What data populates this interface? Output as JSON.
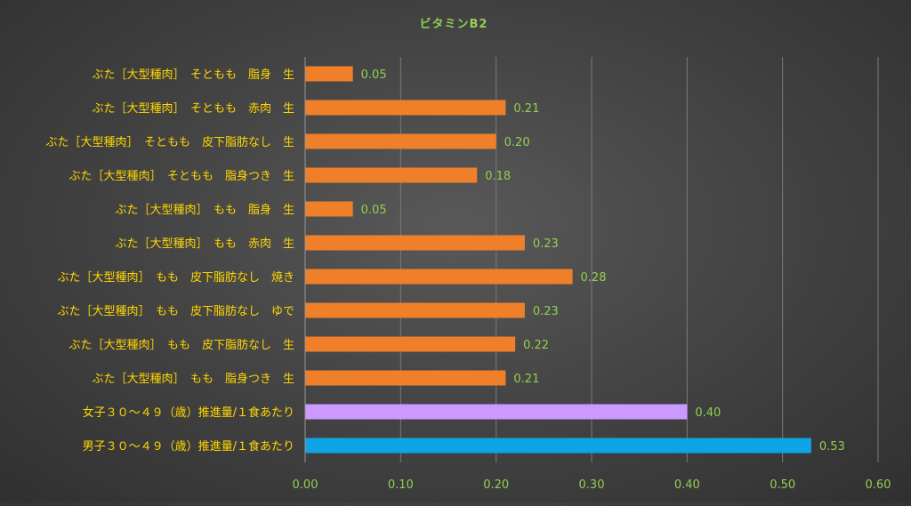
{
  "chart_data": {
    "type": "bar",
    "orientation": "horizontal",
    "title": "ビタミンB2",
    "categories": [
      "ぶた［大型種肉］　そともも　脂身　生",
      "ぶた［大型種肉］　そともも　赤肉　生",
      "ぶた［大型種肉］　そともも　皮下脂肪なし　生",
      "ぶた［大型種肉］　そともも　脂身つき　生",
      "ぶた［大型種肉］　もも　脂身　生",
      "ぶた［大型種肉］　もも　赤肉　生",
      "ぶた［大型種肉］　もも　皮下脂肪なし　焼き",
      "ぶた［大型種肉］　もも　皮下脂肪なし　ゆで",
      "ぶた［大型種肉］　もも　皮下脂肪なし　生",
      "ぶた［大型種肉］　もも　脂身つき　生",
      "女子３０～４９（歳）推進量/１食あたり",
      "男子３０～４９（歳）推進量/１食あたり"
    ],
    "values": [
      0.05,
      0.21,
      0.2,
      0.18,
      0.05,
      0.23,
      0.28,
      0.23,
      0.22,
      0.21,
      0.4,
      0.53
    ],
    "value_labels": [
      "0.05",
      "0.21",
      "0.20",
      "0.18",
      "0.05",
      "0.23",
      "0.28",
      "0.23",
      "0.22",
      "0.21",
      "0.40",
      "0.53"
    ],
    "bar_colors": [
      "#f07f2a",
      "#f07f2a",
      "#f07f2a",
      "#f07f2a",
      "#f07f2a",
      "#f07f2a",
      "#f07f2a",
      "#f07f2a",
      "#f07f2a",
      "#f07f2a",
      "#cc99ff",
      "#0fa4e6"
    ],
    "xlim": [
      0,
      0.6
    ],
    "xticks": [
      0,
      0.1,
      0.2,
      0.3,
      0.4,
      0.5,
      0.6
    ],
    "xtick_labels": [
      "0.00",
      "0.10",
      "0.20",
      "0.30",
      "0.40",
      "0.50",
      "0.60"
    ],
    "xlabel": "",
    "ylabel": "",
    "grid": "vertical",
    "legend": "none",
    "colors": {
      "title": "#92d050",
      "category_text": "#ffd700",
      "value_text": "#92d050",
      "tick_text": "#92d050",
      "gridline": "#7a7a7a",
      "axis": "#9a9a9a"
    }
  }
}
